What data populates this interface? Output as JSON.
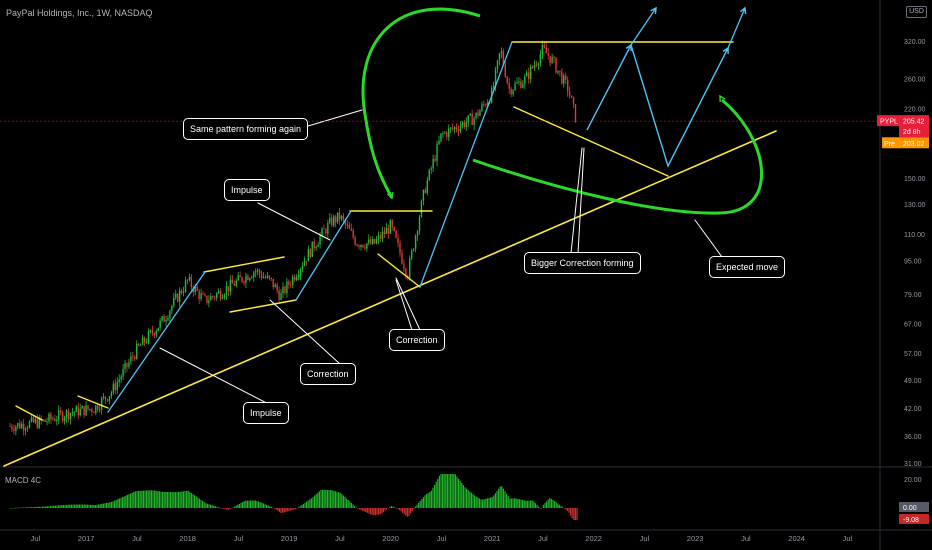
{
  "header": {
    "title": "PayPal Holdings, Inc., 1W, NASDAQ",
    "currency": "USD"
  },
  "indicator": {
    "title": "MACD 4C",
    "values": [
      "0.00",
      "-9.08"
    ],
    "ticks": [
      "20.00",
      "0.00"
    ]
  },
  "price_labels": {
    "symbol": "PYPL",
    "price": "205.42",
    "countdown": "2d 8h",
    "pre_label": "Pre",
    "pre_price": "203.02",
    "colors": {
      "last": "#e91e3a",
      "pre": "#ff9800"
    }
  },
  "annotations": {
    "same_pattern": "Same pattern forming again",
    "impulse_top": "Impulse",
    "impulse_bottom": "Impulse",
    "correction_left": "Correction",
    "correction_mid": "Correction",
    "bigger_correction": "Bigger Correction forming",
    "expected_move": "Expected move"
  },
  "chart_data": {
    "type": "candlestick",
    "title": "PayPal Holdings, Inc., 1W, NASDAQ",
    "y_scale": "log",
    "y_ticks": [
      "320.00",
      "260.00",
      "220.00",
      "180.00",
      "150.00",
      "130.00",
      "110.00",
      "95.00",
      "79.00",
      "67.00",
      "57.00",
      "49.00",
      "42.00",
      "36.00",
      "31.00"
    ],
    "x_ticks": [
      "Jul",
      "2017",
      "Jul",
      "2018",
      "Jul",
      "2019",
      "Jul",
      "2020",
      "Jul",
      "2021",
      "Jul",
      "2022",
      "Jul",
      "2023",
      "Jul",
      "2024",
      "Jul"
    ],
    "price_path": [
      [
        "2016-04",
        38
      ],
      [
        "2016-08",
        39
      ],
      [
        "2016-11",
        41
      ],
      [
        "2017-02",
        42
      ],
      [
        "2017-04",
        46
      ],
      [
        "2017-07",
        58
      ],
      [
        "2017-10",
        68
      ],
      [
        "2018-01",
        85
      ],
      [
        "2018-03",
        76
      ],
      [
        "2018-05",
        80
      ],
      [
        "2018-07",
        85
      ],
      [
        "2018-09",
        90
      ],
      [
        "2018-11",
        84
      ],
      [
        "2018-12",
        78
      ],
      [
        "2019-02",
        90
      ],
      [
        "2019-04",
        104
      ],
      [
        "2019-06",
        118
      ],
      [
        "2019-07",
        121
      ],
      [
        "2019-09",
        105
      ],
      [
        "2019-11",
        104
      ],
      [
        "2020-01",
        115
      ],
      [
        "2020-03",
        88
      ],
      [
        "2020-05",
        140
      ],
      [
        "2020-07",
        190
      ],
      [
        "2020-09",
        200
      ],
      [
        "2020-11",
        210
      ],
      [
        "2021-01",
        240
      ],
      [
        "2021-02",
        305
      ],
      [
        "2021-03",
        245
      ],
      [
        "2021-05",
        260
      ],
      [
        "2021-07",
        305
      ],
      [
        "2021-08",
        290
      ],
      [
        "2021-10",
        245
      ],
      [
        "2021-11",
        205
      ]
    ],
    "last_price": 205.42,
    "premarket_price": 203.02,
    "drawings": {
      "trendline": "yellow rising support line from 2016 low",
      "resistance": "yellow horizontal line near 310",
      "projected_path": "cyan zigzag up to new highs"
    }
  }
}
